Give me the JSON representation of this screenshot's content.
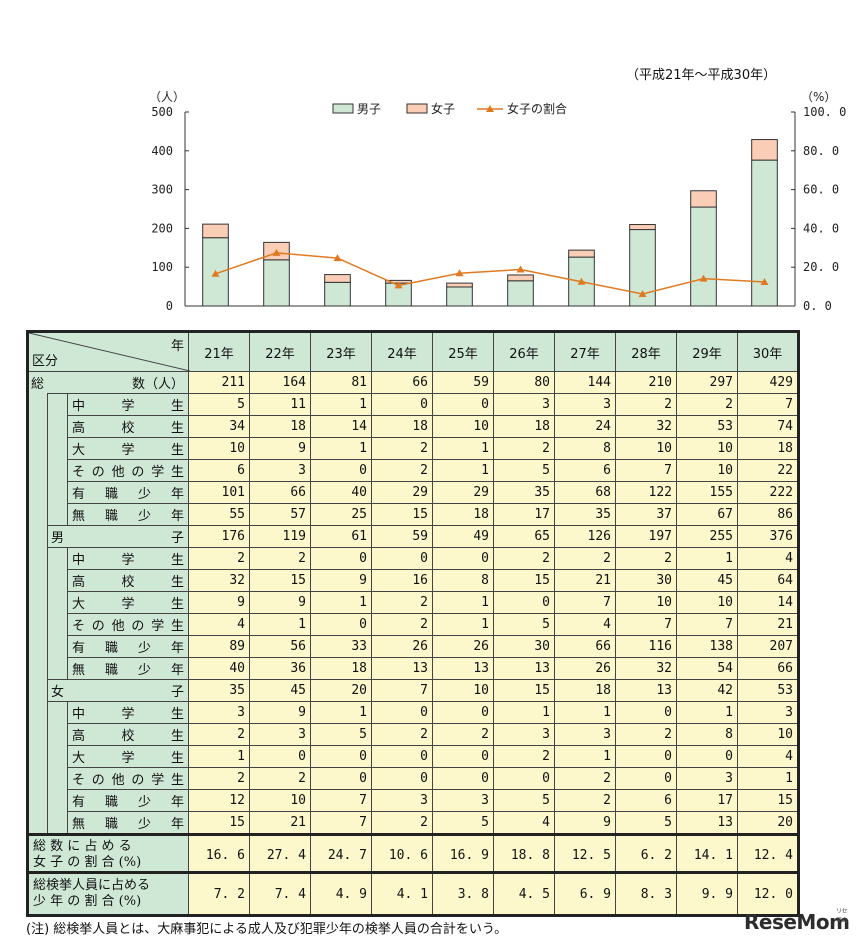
{
  "chart_data": {
    "type": "bar",
    "stacked": true,
    "period_label": "（平成21年～平成30年）",
    "y_left_unit": "（人）",
    "y_right_unit": "（%）",
    "ylim_left": [
      0,
      500
    ],
    "ylim_right": [
      0,
      100
    ],
    "y_left_ticks": [
      "0",
      "100",
      "200",
      "300",
      "400",
      "500"
    ],
    "y_right_ticks": [
      "0. 0",
      "20. 0",
      "40. 0",
      "60. 0",
      "80. 0",
      "100. 0"
    ],
    "categories": [
      "21年",
      "22年",
      "23年",
      "24年",
      "25年",
      "26年",
      "27年",
      "28年",
      "29年",
      "30年"
    ],
    "legend_position": "top-center",
    "series": [
      {
        "name": "男子",
        "kind": "bar",
        "color": "#cfe8d6",
        "values": [
          176,
          119,
          61,
          59,
          49,
          65,
          126,
          197,
          255,
          376
        ]
      },
      {
        "name": "女子",
        "kind": "bar",
        "color": "#f9cdb6",
        "values": [
          35,
          45,
          20,
          7,
          10,
          15,
          18,
          13,
          42,
          53
        ]
      },
      {
        "name": "女子の割合",
        "kind": "line",
        "axis": "right",
        "color": "#e07a20",
        "values": [
          16.6,
          27.4,
          24.7,
          10.6,
          16.9,
          18.8,
          12.5,
          6.2,
          14.1,
          12.4
        ]
      }
    ]
  },
  "table": {
    "corner_year": "年",
    "corner_category": "区分",
    "years": [
      "21年",
      "22年",
      "23年",
      "24年",
      "25年",
      "26年",
      "27年",
      "28年",
      "29年",
      "30年"
    ],
    "groups": [
      {
        "label_left": "総",
        "label_right": "数（人）",
        "values": [
          "211",
          "164",
          "81",
          "66",
          "59",
          "80",
          "144",
          "210",
          "297",
          "429"
        ],
        "rows": [
          {
            "label": "中学生",
            "values": [
              "5",
              "11",
              "1",
              "0",
              "0",
              "3",
              "3",
              "2",
              "2",
              "7"
            ]
          },
          {
            "label": "高校生",
            "values": [
              "34",
              "18",
              "14",
              "18",
              "10",
              "18",
              "24",
              "32",
              "53",
              "74"
            ]
          },
          {
            "label": "大学生",
            "values": [
              "10",
              "9",
              "1",
              "2",
              "1",
              "2",
              "8",
              "10",
              "10",
              "18"
            ]
          },
          {
            "label": "その他の学生",
            "values": [
              "6",
              "3",
              "0",
              "2",
              "1",
              "5",
              "6",
              "7",
              "10",
              "22"
            ]
          },
          {
            "label": "有職少年",
            "values": [
              "101",
              "66",
              "40",
              "29",
              "29",
              "35",
              "68",
              "122",
              "155",
              "222"
            ]
          },
          {
            "label": "無職少年",
            "values": [
              "55",
              "57",
              "25",
              "15",
              "18",
              "17",
              "35",
              "37",
              "67",
              "86"
            ]
          }
        ]
      },
      {
        "label_left": "男",
        "label_right": "子",
        "values": [
          "176",
          "119",
          "61",
          "59",
          "49",
          "65",
          "126",
          "197",
          "255",
          "376"
        ],
        "rows": [
          {
            "label": "中学生",
            "values": [
              "2",
              "2",
              "0",
              "0",
              "0",
              "2",
              "2",
              "2",
              "1",
              "4"
            ]
          },
          {
            "label": "高校生",
            "values": [
              "32",
              "15",
              "9",
              "16",
              "8",
              "15",
              "21",
              "30",
              "45",
              "64"
            ]
          },
          {
            "label": "大学生",
            "values": [
              "9",
              "9",
              "1",
              "2",
              "1",
              "0",
              "7",
              "10",
              "10",
              "14"
            ]
          },
          {
            "label": "その他の学生",
            "values": [
              "4",
              "1",
              "0",
              "2",
              "1",
              "5",
              "4",
              "7",
              "7",
              "21"
            ]
          },
          {
            "label": "有職少年",
            "values": [
              "89",
              "56",
              "33",
              "26",
              "26",
              "30",
              "66",
              "116",
              "138",
              "207"
            ]
          },
          {
            "label": "無職少年",
            "values": [
              "40",
              "36",
              "18",
              "13",
              "13",
              "13",
              "26",
              "32",
              "54",
              "66"
            ]
          }
        ]
      },
      {
        "label_left": "女",
        "label_right": "子",
        "values": [
          "35",
          "45",
          "20",
          "7",
          "10",
          "15",
          "18",
          "13",
          "42",
          "53"
        ],
        "rows": [
          {
            "label": "中学生",
            "values": [
              "3",
              "9",
              "1",
              "0",
              "0",
              "1",
              "1",
              "0",
              "1",
              "3"
            ]
          },
          {
            "label": "高校生",
            "values": [
              "2",
              "3",
              "5",
              "2",
              "2",
              "3",
              "3",
              "2",
              "8",
              "10"
            ]
          },
          {
            "label": "大学生",
            "values": [
              "1",
              "0",
              "0",
              "0",
              "0",
              "2",
              "1",
              "0",
              "0",
              "4"
            ]
          },
          {
            "label": "その他の学生",
            "values": [
              "2",
              "2",
              "0",
              "0",
              "0",
              "0",
              "2",
              "0",
              "3",
              "1"
            ]
          },
          {
            "label": "有職少年",
            "values": [
              "12",
              "10",
              "7",
              "3",
              "3",
              "5",
              "2",
              "6",
              "17",
              "15"
            ]
          },
          {
            "label": "無職少年",
            "values": [
              "15",
              "21",
              "7",
              "2",
              "5",
              "4",
              "9",
              "5",
              "13",
              "20"
            ]
          }
        ]
      }
    ],
    "female_ratio_label_1": "総 数 に 占 め る",
    "female_ratio_label_2": "女 子 の 割 合 (%)",
    "female_ratio_values": [
      "16. 6",
      "27. 4",
      "24. 7",
      "10. 6",
      "16. 9",
      "18. 8",
      "12. 5",
      "6. 2",
      "14. 1",
      "12. 4"
    ],
    "juvenile_ratio_label_1": "総検挙人員に占める",
    "juvenile_ratio_label_2": "少 年 の 割 合 (%)",
    "juvenile_ratio_values": [
      "7. 2",
      "7. 4",
      "4. 9",
      "4. 1",
      "3. 8",
      "4. 5",
      "6. 9",
      "8. 3",
      "9. 9",
      "12. 0"
    ]
  },
  "footnote": "(注) 総検挙人員とは、大麻事犯による成人及び犯罪少年の検挙人員の合計をいう。",
  "watermark": {
    "brand": "ReseMom",
    "small": "リセマム"
  }
}
